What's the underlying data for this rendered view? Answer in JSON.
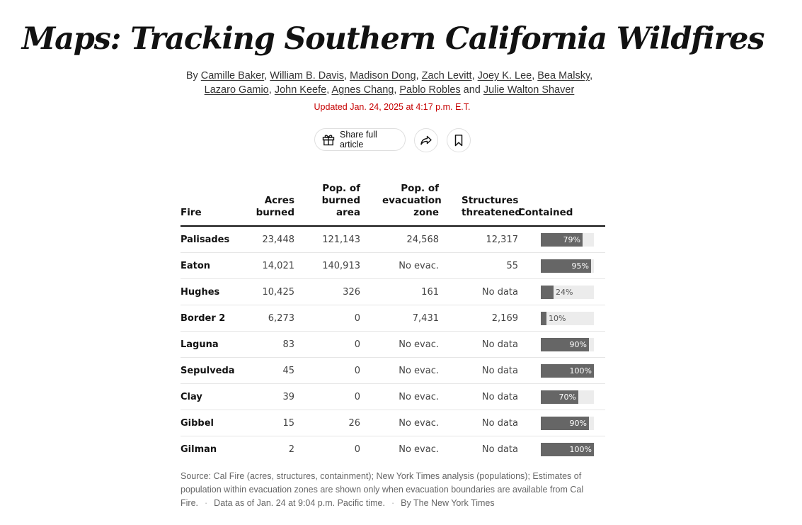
{
  "headline": "Maps: Tracking Southern California Wildfires",
  "byline": {
    "prefix": "By",
    "authors": [
      "Camille Baker",
      "William B. Davis",
      "Madison Dong",
      "Zach Levitt",
      "Joey K. Lee",
      "Bea Malsky",
      "Lazaro Gamio",
      "John Keefe",
      "Agnes Chang",
      "Pablo Robles",
      "Julie Walton Shaver"
    ],
    "and": "and"
  },
  "updated": "Updated Jan. 24, 2025 at 4:17 p.m. E.T.",
  "actions": {
    "share_label": "Share full article"
  },
  "table": {
    "headers": {
      "fire": "Fire",
      "acres": "Acres burned",
      "pop_burned": "Pop. of burned area",
      "pop_evac": "Pop. of evacuation zone",
      "structures": "Structures threatened",
      "contained": "Contained"
    },
    "rows": [
      {
        "fire": "Palisades",
        "acres": "23,448",
        "pop_burned": "121,143",
        "pop_evac": "24,568",
        "structures": "12,317",
        "contained_pct": 79,
        "contained_label": "79%"
      },
      {
        "fire": "Eaton",
        "acres": "14,021",
        "pop_burned": "140,913",
        "pop_evac": "No evac.",
        "structures": "55",
        "contained_pct": 95,
        "contained_label": "95%"
      },
      {
        "fire": "Hughes",
        "acres": "10,425",
        "pop_burned": "326",
        "pop_evac": "161",
        "structures": "No data",
        "contained_pct": 24,
        "contained_label": "24%"
      },
      {
        "fire": "Border 2",
        "acres": "6,273",
        "pop_burned": "0",
        "pop_evac": "7,431",
        "structures": "2,169",
        "contained_pct": 10,
        "contained_label": "10%"
      },
      {
        "fire": "Laguna",
        "acres": "83",
        "pop_burned": "0",
        "pop_evac": "No evac.",
        "structures": "No data",
        "contained_pct": 90,
        "contained_label": "90%"
      },
      {
        "fire": "Sepulveda",
        "acres": "45",
        "pop_burned": "0",
        "pop_evac": "No evac.",
        "structures": "No data",
        "contained_pct": 100,
        "contained_label": "100%"
      },
      {
        "fire": "Clay",
        "acres": "39",
        "pop_burned": "0",
        "pop_evac": "No evac.",
        "structures": "No data",
        "contained_pct": 70,
        "contained_label": "70%"
      },
      {
        "fire": "Gibbel",
        "acres": "15",
        "pop_burned": "26",
        "pop_evac": "No evac.",
        "structures": "No data",
        "contained_pct": 90,
        "contained_label": "90%"
      },
      {
        "fire": "Gilman",
        "acres": "2",
        "pop_burned": "0",
        "pop_evac": "No evac.",
        "structures": "No data",
        "contained_pct": 100,
        "contained_label": "100%"
      }
    ]
  },
  "footer": {
    "source": "Source: Cal Fire (acres, structures, containment); New York Times analysis (populations); Estimates of population within evacuation zones are shown only when evacuation boundaries are available from Cal Fire.",
    "data_as_of": "Data as of Jan. 24 at 9:04 p.m. Pacific time.",
    "credit": "By The New York Times",
    "separator": "·"
  },
  "colors": {
    "bar_fill": "#666666",
    "bar_track": "#ececec",
    "updated_red": "#c60000"
  }
}
